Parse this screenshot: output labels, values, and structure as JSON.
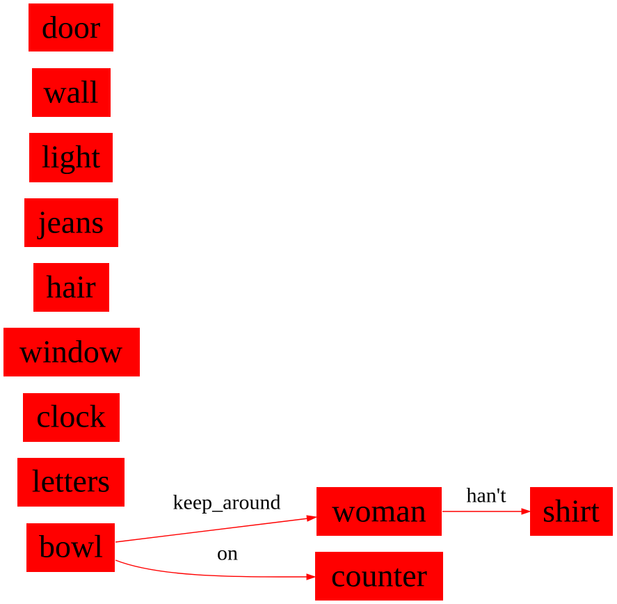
{
  "colors": {
    "node_fill": "#ff0000",
    "edge": "#ff0000",
    "text": "#000000"
  },
  "nodes": {
    "door": "door",
    "wall": "wall",
    "light": "light",
    "jeans": "jeans",
    "hair": "hair",
    "window": "window",
    "clock": "clock",
    "letters": "letters",
    "bowl": "bowl",
    "woman": "woman",
    "counter": "counter",
    "shirt": "shirt"
  },
  "edges": [
    {
      "from": "bowl",
      "to": "woman",
      "label": "keep_around"
    },
    {
      "from": "bowl",
      "to": "counter",
      "label": "on"
    },
    {
      "from": "woman",
      "to": "shirt",
      "label": "han't"
    }
  ]
}
